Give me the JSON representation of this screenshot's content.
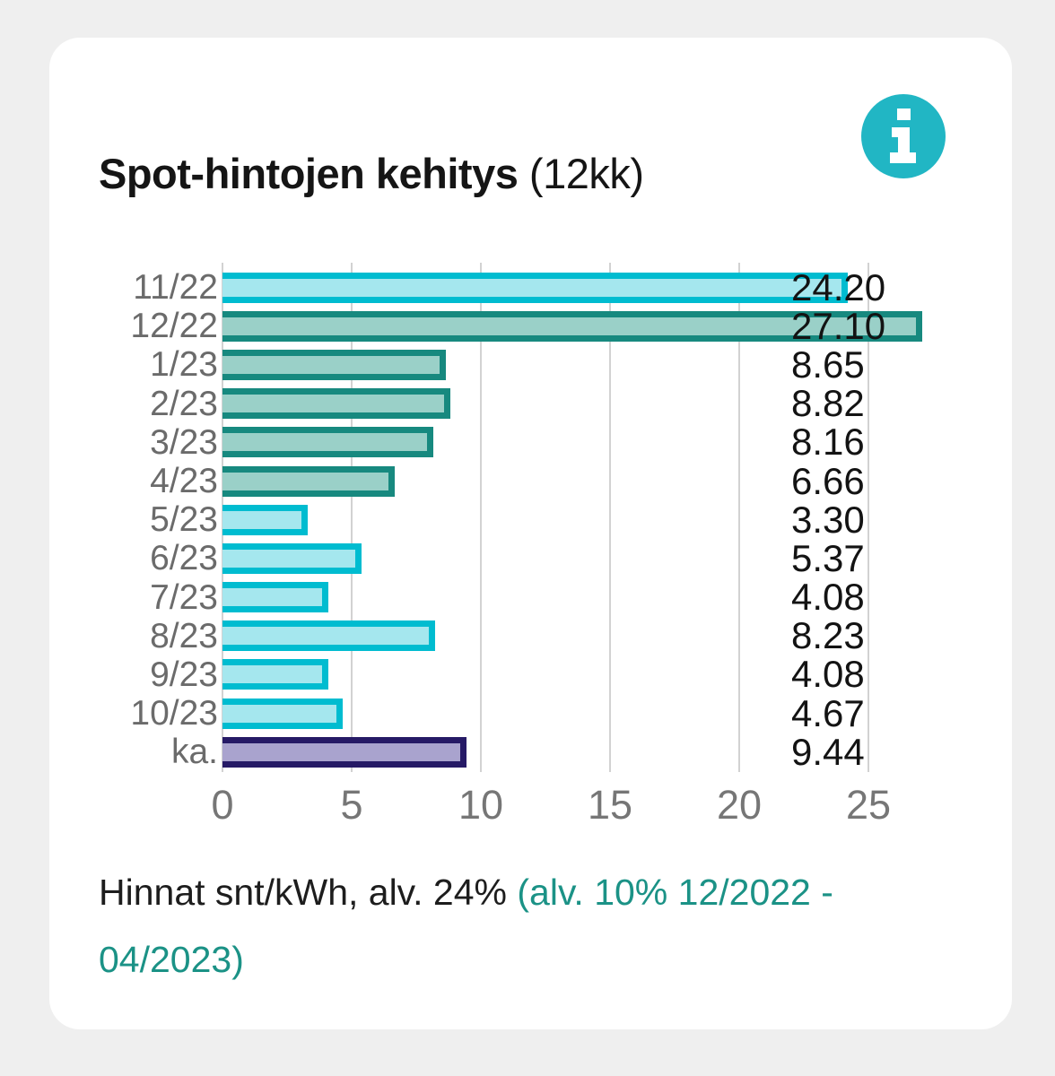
{
  "header": {
    "title_bold": "Spot-hintojen kehitys",
    "title_suffix": "(12kk)"
  },
  "chart_data": {
    "type": "bar",
    "orientation": "horizontal",
    "title": "Spot-hintojen kehitys (12kk)",
    "categories": [
      "11/22",
      "12/22",
      "1/23",
      "2/23",
      "3/23",
      "4/23",
      "5/23",
      "6/23",
      "7/23",
      "8/23",
      "9/23",
      "10/23",
      "ka."
    ],
    "values": [
      24.2,
      27.1,
      8.65,
      8.82,
      8.16,
      6.66,
      3.3,
      5.37,
      4.08,
      8.23,
      4.08,
      4.67,
      9.44
    ],
    "value_labels": [
      "24.20",
      "27.10",
      "8.65",
      "8.82",
      "8.16",
      "6.66",
      "3.30",
      "5.37",
      "4.08",
      "8.23",
      "4.08",
      "4.67",
      "9.44"
    ],
    "bar_styles": [
      "cyan",
      "teal",
      "teal",
      "teal",
      "teal",
      "teal",
      "cyan",
      "cyan",
      "cyan",
      "cyan",
      "cyan",
      "cyan",
      "purple"
    ],
    "style_colors": {
      "cyan": {
        "border": "#00bcd0",
        "fill": "#a5e7ee"
      },
      "teal": {
        "border": "#17897f",
        "fill": "#9ad0c8"
      },
      "purple": {
        "border": "#261a66",
        "fill": "#a9a3ce"
      }
    },
    "x_ticks": [
      "0",
      "5",
      "10",
      "15",
      "20",
      "25"
    ],
    "xlim": [
      0,
      27.5
    ],
    "grid": true
  },
  "footnote": {
    "main": "Hinnat snt/kWh, alv. 24%",
    "note": "(alv. 10% 12/2022 - 04/2023)"
  },
  "colors": {
    "page_background": "#efefef",
    "card_background": "#ffffff",
    "info_icon_background": "#21b6c4",
    "info_icon_glyph": "#ffffff",
    "gridline": "#d2d2d2",
    "category_label": "#6b6b6b",
    "axis_label": "#767676",
    "value_label": "#131313",
    "title": "#151515",
    "footnote_main": "#1d1d1d",
    "footnote_note": "#1b9286"
  }
}
